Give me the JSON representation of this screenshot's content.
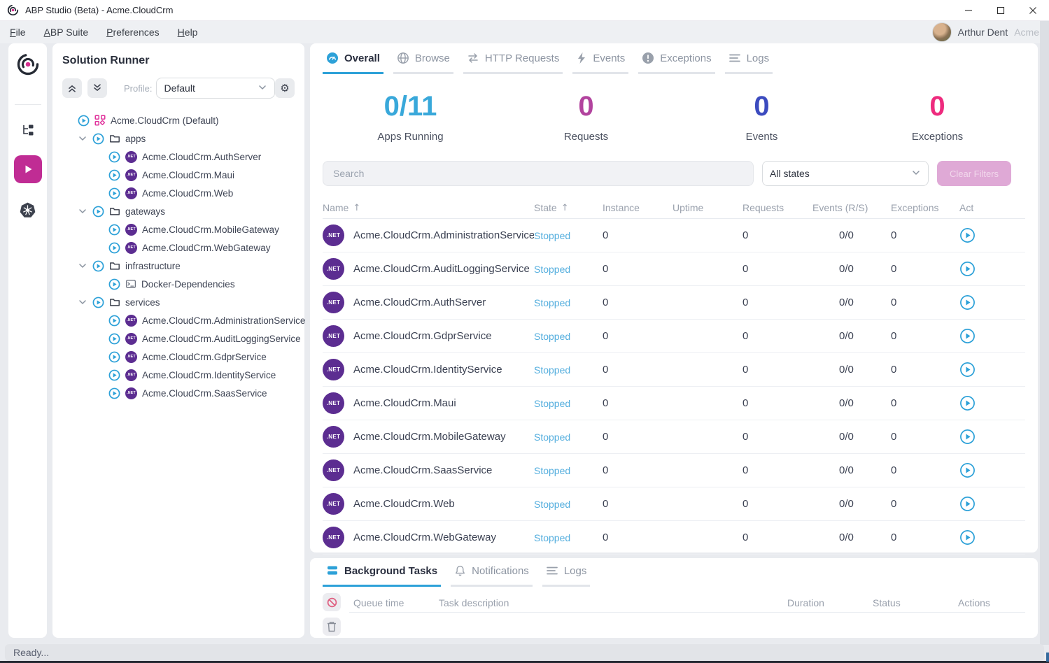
{
  "window": {
    "title": "ABP Studio (Beta) - Acme.CloudCrm",
    "controls": [
      "minimize",
      "maximize",
      "close"
    ]
  },
  "menu": {
    "items": [
      {
        "label": "File"
      },
      {
        "label": "ABP Suite"
      },
      {
        "label": "Preferences"
      },
      {
        "label": "Help"
      }
    ],
    "user": {
      "name": "Arthur Dent",
      "tenant": "Acme"
    }
  },
  "activity_bar": {
    "items": [
      {
        "icon": "abp-logo"
      },
      {
        "icon": "solution-explorer"
      },
      {
        "icon": "solution-runner",
        "active": true
      },
      {
        "icon": "kubernetes"
      }
    ]
  },
  "solution_runner": {
    "title": "Solution Runner",
    "profile_label": "Profile:",
    "profile_value": "Default",
    "tree": [
      {
        "label": "Acme.CloudCrm (Default)",
        "kind": "solution",
        "icon": "solution"
      },
      {
        "label": "apps",
        "kind": "group",
        "icon": "folder"
      },
      {
        "label": "Acme.CloudCrm.AuthServer",
        "kind": "item",
        "icon": "dotnet"
      },
      {
        "label": "Acme.CloudCrm.Maui",
        "kind": "item",
        "icon": "dotnet"
      },
      {
        "label": "Acme.CloudCrm.Web",
        "kind": "item",
        "icon": "dotnet"
      },
      {
        "label": "gateways",
        "kind": "group",
        "icon": "folder"
      },
      {
        "label": "Acme.CloudCrm.MobileGateway",
        "kind": "item",
        "icon": "dotnet"
      },
      {
        "label": "Acme.CloudCrm.WebGateway",
        "kind": "item",
        "icon": "dotnet"
      },
      {
        "label": "infrastructure",
        "kind": "group",
        "icon": "folder"
      },
      {
        "label": "Docker-Dependencies",
        "kind": "item",
        "icon": "terminal"
      },
      {
        "label": "services",
        "kind": "group",
        "icon": "folder"
      },
      {
        "label": "Acme.CloudCrm.AdministrationService",
        "kind": "item",
        "icon": "dotnet"
      },
      {
        "label": "Acme.CloudCrm.AuditLoggingService",
        "kind": "item",
        "icon": "dotnet"
      },
      {
        "label": "Acme.CloudCrm.GdprService",
        "kind": "item",
        "icon": "dotnet"
      },
      {
        "label": "Acme.CloudCrm.IdentityService",
        "kind": "item",
        "icon": "dotnet"
      },
      {
        "label": "Acme.CloudCrm.SaasService",
        "kind": "item",
        "icon": "dotnet"
      }
    ]
  },
  "main": {
    "tabs": [
      {
        "label": "Overall",
        "icon": "gauge",
        "active": true
      },
      {
        "label": "Browse",
        "icon": "globe"
      },
      {
        "label": "HTTP Requests",
        "icon": "swap"
      },
      {
        "label": "Events",
        "icon": "bolt"
      },
      {
        "label": "Exceptions",
        "icon": "exclamation"
      },
      {
        "label": "Logs",
        "icon": "lines"
      }
    ],
    "stats": [
      {
        "value": "0/11",
        "label": "Apps Running",
        "color": "#39a8da"
      },
      {
        "value": "0",
        "label": "Requests",
        "color": "#b2439e"
      },
      {
        "value": "0",
        "label": "Events",
        "color": "#3c4bbf"
      },
      {
        "value": "0",
        "label": "Exceptions",
        "color": "#ee2b7e"
      }
    ],
    "filters": {
      "search_placeholder": "Search",
      "state_filter": "All states",
      "clear_label": "Clear Filters"
    },
    "table": {
      "columns": [
        {
          "label": "Name",
          "sorted": true
        },
        {
          "label": "State",
          "sorted": true
        },
        {
          "label": "Instance"
        },
        {
          "label": "Uptime"
        },
        {
          "label": "Requests"
        },
        {
          "label": "Events (R/S)"
        },
        {
          "label": "Exceptions"
        },
        {
          "label": "Act"
        }
      ],
      "rows": [
        {
          "name": "Acme.CloudCrm.AdministrationService",
          "state": "Stopped",
          "instance": "0",
          "uptime": "",
          "requests": "0",
          "events": "0/0",
          "exceptions": "0"
        },
        {
          "name": "Acme.CloudCrm.AuditLoggingService",
          "state": "Stopped",
          "instance": "0",
          "uptime": "",
          "requests": "0",
          "events": "0/0",
          "exceptions": "0"
        },
        {
          "name": "Acme.CloudCrm.AuthServer",
          "state": "Stopped",
          "instance": "0",
          "uptime": "",
          "requests": "0",
          "events": "0/0",
          "exceptions": "0"
        },
        {
          "name": "Acme.CloudCrm.GdprService",
          "state": "Stopped",
          "instance": "0",
          "uptime": "",
          "requests": "0",
          "events": "0/0",
          "exceptions": "0"
        },
        {
          "name": "Acme.CloudCrm.IdentityService",
          "state": "Stopped",
          "instance": "0",
          "uptime": "",
          "requests": "0",
          "events": "0/0",
          "exceptions": "0"
        },
        {
          "name": "Acme.CloudCrm.Maui",
          "state": "Stopped",
          "instance": "0",
          "uptime": "",
          "requests": "0",
          "events": "0/0",
          "exceptions": "0"
        },
        {
          "name": "Acme.CloudCrm.MobileGateway",
          "state": "Stopped",
          "instance": "0",
          "uptime": "",
          "requests": "0",
          "events": "0/0",
          "exceptions": "0"
        },
        {
          "name": "Acme.CloudCrm.SaasService",
          "state": "Stopped",
          "instance": "0",
          "uptime": "",
          "requests": "0",
          "events": "0/0",
          "exceptions": "0"
        },
        {
          "name": "Acme.CloudCrm.Web",
          "state": "Stopped",
          "instance": "0",
          "uptime": "",
          "requests": "0",
          "events": "0/0",
          "exceptions": "0"
        },
        {
          "name": "Acme.CloudCrm.WebGateway",
          "state": "Stopped",
          "instance": "0",
          "uptime": "",
          "requests": "0",
          "events": "0/0",
          "exceptions": "0"
        }
      ]
    }
  },
  "bottom_panel": {
    "tabs": [
      {
        "label": "Background Tasks",
        "icon": "stack",
        "active": true
      },
      {
        "label": "Notifications",
        "icon": "bell"
      },
      {
        "label": "Logs",
        "icon": "lines"
      }
    ],
    "columns": [
      "Queue time",
      "Task description",
      "Duration",
      "Status",
      "Actions"
    ]
  },
  "status_bar": {
    "text": "Ready..."
  }
}
